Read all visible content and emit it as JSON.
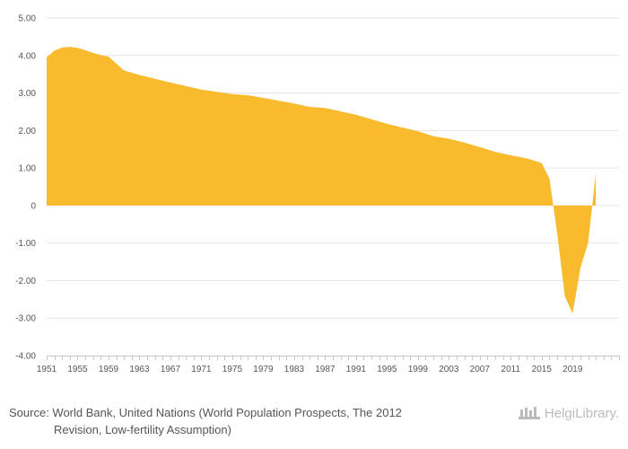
{
  "chart_data": {
    "type": "area",
    "title": "",
    "xlabel": "",
    "ylabel": "",
    "ylim": [
      -4,
      5
    ],
    "xlim": [
      1951,
      2025
    ],
    "grid": true,
    "fill_color": "#F9BB2E",
    "y_ticks": [
      5,
      4,
      3,
      2,
      1,
      0,
      -1,
      -2,
      -3,
      -4
    ],
    "y_tick_labels": [
      "5.00",
      "4.00",
      "3.00",
      "2.00",
      "1.00",
      "0",
      "-1.00",
      "-2.00",
      "-3.00",
      "-4.00"
    ],
    "x_tick_labels": [
      "1951",
      "1955",
      "1959",
      "1963",
      "1967",
      "1971",
      "1975",
      "1979",
      "1983",
      "1987",
      "1991",
      "1995",
      "1999",
      "2003",
      "2007",
      "2011",
      "2015",
      "2019"
    ],
    "x": [
      1951,
      1952,
      1953,
      1954,
      1955,
      1956,
      1957,
      1958,
      1959,
      1961,
      1963,
      1967,
      1971,
      1975,
      1977,
      1979,
      1983,
      1985,
      1987,
      1991,
      1995,
      1999,
      2001,
      2003,
      2005,
      2007,
      2009,
      2011,
      2013,
      2014,
      2015,
      2016,
      2017,
      2018,
      2019,
      2020,
      2021,
      2022
    ],
    "values": [
      3.95,
      4.13,
      4.21,
      4.23,
      4.2,
      4.14,
      4.07,
      4.01,
      3.97,
      3.6,
      3.48,
      3.28,
      3.09,
      2.97,
      2.94,
      2.87,
      2.72,
      2.63,
      2.6,
      2.42,
      2.18,
      1.98,
      1.85,
      1.78,
      1.68,
      1.56,
      1.43,
      1.34,
      1.26,
      1.2,
      1.13,
      0.72,
      -0.73,
      -2.42,
      -2.88,
      -1.67,
      -1.0,
      0.86
    ]
  },
  "source": {
    "line1": "Source: World Bank, United Nations (World Population Prospects, The 2012",
    "line2": "Revision, Low-fertility Assumption)"
  },
  "logo_text": "HelgiLibrary."
}
